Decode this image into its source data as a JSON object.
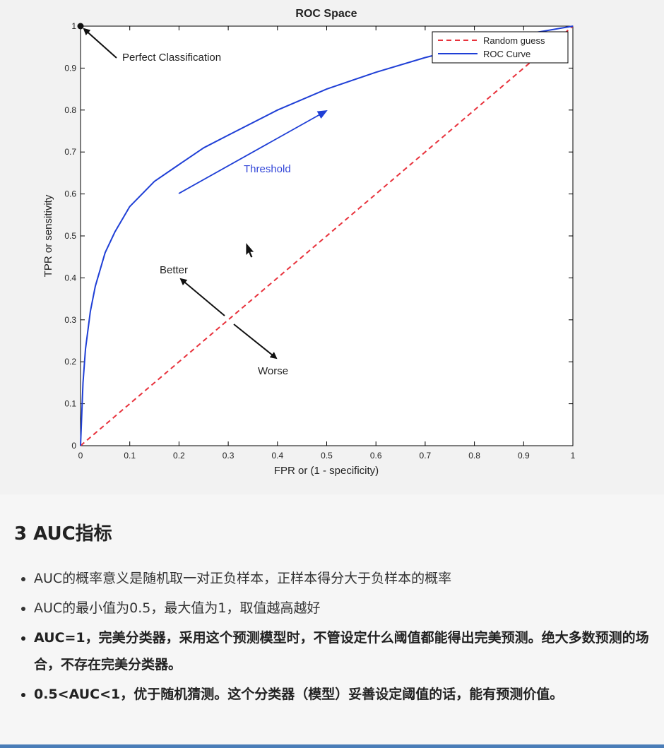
{
  "chart_data": {
    "type": "line",
    "title": "ROC Space",
    "xlabel": "FPR or (1 - specificity)",
    "ylabel": "TPR or sensitivity",
    "xlim": [
      0,
      1
    ],
    "ylim": [
      0,
      1
    ],
    "xticks": [
      "0",
      "0.1",
      "0.2",
      "0.3",
      "0.4",
      "0.5",
      "0.6",
      "0.7",
      "0.8",
      "0.9",
      "1"
    ],
    "yticks": [
      "0",
      "0.1",
      "0.2",
      "0.3",
      "0.4",
      "0.5",
      "0.6",
      "0.7",
      "0.8",
      "0.9",
      "1"
    ],
    "grid": false,
    "legend_position": "top-right",
    "series": [
      {
        "name": "Random guess",
        "style": "dashed",
        "color": "#e8323c",
        "x": [
          0,
          1
        ],
        "y": [
          0,
          1
        ]
      },
      {
        "name": "ROC Curve",
        "style": "solid",
        "color": "#1f3fd6",
        "x": [
          0,
          0.005,
          0.01,
          0.02,
          0.03,
          0.05,
          0.07,
          0.1,
          0.15,
          0.2,
          0.25,
          0.3,
          0.4,
          0.5,
          0.6,
          0.7,
          0.8,
          0.9,
          1.0
        ],
        "y": [
          0,
          0.15,
          0.23,
          0.32,
          0.38,
          0.46,
          0.51,
          0.57,
          0.63,
          0.67,
          0.71,
          0.74,
          0.8,
          0.85,
          0.89,
          0.925,
          0.955,
          0.98,
          1.0
        ]
      }
    ],
    "annotations": [
      {
        "text": "Perfect Classification",
        "point": [
          0,
          1
        ]
      },
      {
        "text": "Threshold",
        "color": "#3246d8"
      },
      {
        "text": "Better"
      },
      {
        "text": "Worse"
      }
    ]
  },
  "section": {
    "heading": "3 AUC指标",
    "bullets": [
      {
        "text": "AUC的概率意义是随机取一对正负样本，正样本得分大于负样本的概率",
        "bold": false
      },
      {
        "text": "AUC的最小值为0.5，最大值为1，取值越高越好",
        "bold": false
      },
      {
        "text": "AUC=1，完美分类器，采用这个预测模型时，不管设定什么阈值都能得出完美预测。绝大多数预测的场合，不存在完美分类器。",
        "bold": true
      },
      {
        "text": "0.5<AUC<1，优于随机猜测。这个分类器（模型）妥善设定阈值的话，能有预测价值。",
        "bold": true
      }
    ]
  }
}
